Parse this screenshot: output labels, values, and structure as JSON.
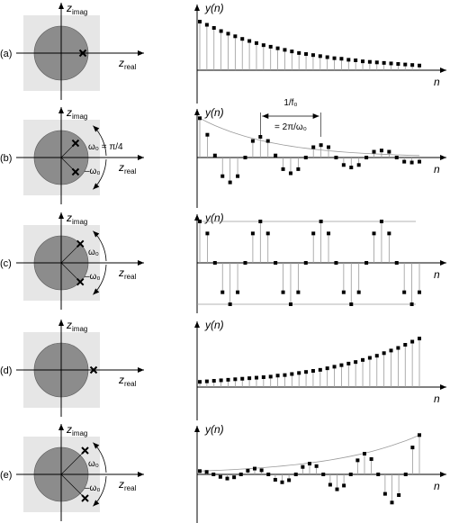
{
  "panels": [
    {
      "label": "(a)",
      "pole_angles_deg": [
        0
      ],
      "pole_radius": 0.8,
      "omega_labels": [],
      "ylabel": "y(n)",
      "xlabel": "n",
      "samples": [
        0.93,
        0.87,
        0.81,
        0.75,
        0.7,
        0.65,
        0.6,
        0.56,
        0.52,
        0.48,
        0.45,
        0.42,
        0.39,
        0.36,
        0.33,
        0.31,
        0.29,
        0.27,
        0.25,
        0.23,
        0.22,
        0.2,
        0.19,
        0.17,
        0.16,
        0.15,
        0.14,
        0.13,
        0.12,
        0.11,
        0.1,
        0.09
      ]
    },
    {
      "label": "(b)",
      "pole_angles_deg": [
        45,
        -45
      ],
      "pole_radius": 0.75,
      "omega_labels": [
        "ω₀ = π/4",
        "–ω₀"
      ],
      "ylabel": "y(n)",
      "xlabel": "n",
      "envelope": true,
      "period_annotation": [
        "1/f₀",
        "= 2π/ω₀"
      ],
      "samples": [
        0.95,
        0.55,
        0.05,
        -0.45,
        -0.6,
        -0.45,
        0.0,
        0.4,
        0.5,
        0.4,
        0.05,
        -0.28,
        -0.38,
        -0.28,
        0.0,
        0.25,
        0.3,
        0.25,
        0.0,
        -0.18,
        -0.24,
        -0.18,
        0.0,
        0.14,
        0.17,
        0.14,
        0.0,
        -0.1,
        -0.12,
        -0.1
      ]
    },
    {
      "label": "(c)",
      "pole_angles_deg": [
        45,
        -45
      ],
      "pole_radius": 1.0,
      "omega_labels": [
        "ω₀",
        "–ω₀"
      ],
      "ylabel": "y(n)",
      "xlabel": "n",
      "bounds": true,
      "samples": [
        1.0,
        0.71,
        0.0,
        -0.71,
        -1.0,
        -0.71,
        0.0,
        0.71,
        1.0,
        0.71,
        0.0,
        -0.71,
        -1.0,
        -0.71,
        0.0,
        0.71,
        1.0,
        0.71,
        0.0,
        -0.71,
        -1.0,
        -0.71,
        0.0,
        0.71,
        1.0,
        0.71,
        0.0,
        -0.71,
        -1.0,
        -0.71
      ]
    },
    {
      "label": "(d)",
      "pole_angles_deg": [
        0
      ],
      "pole_radius": 1.2,
      "omega_labels": [],
      "ylabel": "y(n)",
      "xlabel": "n",
      "samples": [
        0.1,
        0.11,
        0.12,
        0.13,
        0.14,
        0.15,
        0.16,
        0.17,
        0.18,
        0.19,
        0.2,
        0.22,
        0.23,
        0.25,
        0.27,
        0.29,
        0.31,
        0.33,
        0.36,
        0.39,
        0.42,
        0.45,
        0.48,
        0.52,
        0.56,
        0.6,
        0.65,
        0.7,
        0.75,
        0.81,
        0.87,
        0.93
      ]
    },
    {
      "label": "(e)",
      "pole_angles_deg": [
        45,
        -45
      ],
      "pole_radius": 1.25,
      "omega_labels": [
        "ω₀",
        "–ω₀"
      ],
      "ylabel": "y(n)",
      "xlabel": "n",
      "envelope": true,
      "samples": [
        0.08,
        0.06,
        0.0,
        -0.06,
        -0.1,
        -0.07,
        0.0,
        0.09,
        0.14,
        0.1,
        0.0,
        -0.13,
        -0.19,
        -0.14,
        0.0,
        0.18,
        0.26,
        0.2,
        0.0,
        -0.25,
        -0.36,
        -0.27,
        0.0,
        0.34,
        0.5,
        0.37,
        0.0,
        -0.47,
        -0.68,
        -0.5,
        0.0,
        0.65,
        0.95
      ]
    }
  ],
  "zplane": {
    "real_axis_label": "z",
    "real_axis_sub": "real",
    "imag_axis_label": "z",
    "imag_axis_sub": "imag"
  },
  "colors": {
    "background_box": "#e6e6e6",
    "circle_fill": "#8c8c8c",
    "axes": "#000000",
    "stem": "#9a9a9a",
    "marker": "#000000"
  },
  "icons": [
    "pole-cross-icon",
    "arrow-icon"
  ]
}
